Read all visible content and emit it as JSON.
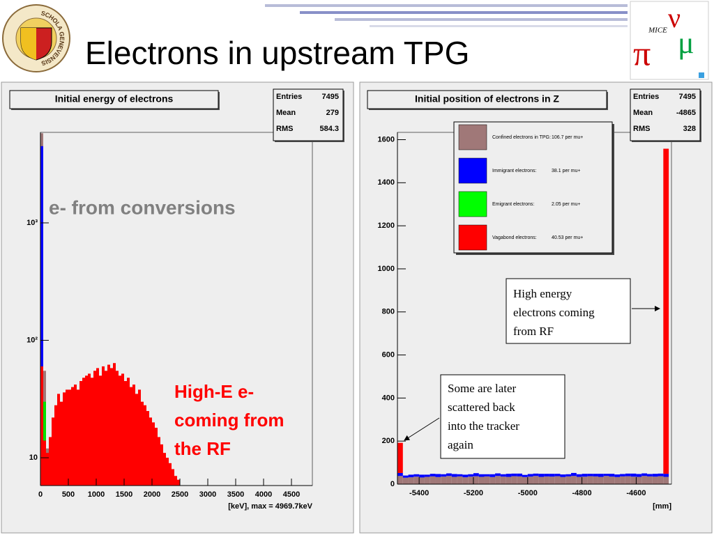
{
  "title": "Electrons in upstream TPG",
  "logo": {
    "seal_text": "SCHOLA GENEVENSIS",
    "mice": "MICE",
    "symbols": [
      "π",
      "ν",
      "μ"
    ]
  },
  "chart_data": [
    {
      "type": "histogram",
      "title": "Initial energy of  electrons",
      "x_label": "[keV], max =    4969.7keV",
      "stats": [
        {
          "label": "Entries",
          "value": 7495
        },
        {
          "label": "Mean",
          "value": 279
        },
        {
          "label": "RMS",
          "value": 584.3
        }
      ],
      "log_y": true,
      "stacked": false,
      "xlim": [
        0,
        4875
      ],
      "ylim": [
        5.8,
        5900
      ],
      "xticks": [
        0,
        500,
        1000,
        1500,
        2000,
        2500,
        3000,
        3500,
        4000,
        4500
      ],
      "yticks": [
        10,
        {
          "value": 100,
          "label": "10²"
        },
        {
          "value": 1000,
          "label": "10³"
        }
      ],
      "bins": [
        0,
        50,
        100,
        150,
        200,
        250,
        300,
        350,
        400,
        450,
        500,
        550,
        600,
        650,
        700,
        750,
        800,
        850,
        900,
        950,
        1000,
        1050,
        1100,
        1150,
        1200,
        1250,
        1300,
        1350,
        1400,
        1450,
        1500,
        1550,
        1600,
        1650,
        1700,
        1750,
        1800,
        1850,
        1900,
        1950,
        2000,
        2050,
        2100,
        2150,
        2200,
        2250,
        2300,
        2350,
        2400,
        2450,
        2500
      ],
      "series": [
        {
          "color": "#a07878",
          "values": [
            5800,
            55,
            12,
            null,
            null,
            null,
            null,
            null,
            null,
            null,
            null,
            null,
            null,
            null,
            null,
            null,
            null,
            null,
            null,
            null,
            null,
            null,
            null,
            null,
            null,
            null,
            null,
            null,
            null,
            null,
            null,
            null,
            null,
            null,
            null,
            null,
            null,
            null,
            null,
            null,
            null,
            null,
            null,
            null,
            null,
            null,
            null,
            null,
            null,
            null
          ]
        },
        {
          "color": "#0000ff",
          "values": [
            4500,
            12,
            null,
            null,
            null,
            null,
            null,
            null,
            null,
            null,
            null,
            null,
            null,
            null,
            null,
            null,
            null,
            null,
            null,
            null,
            null,
            null,
            null,
            null,
            null,
            null,
            null,
            null,
            null,
            null,
            null,
            null,
            null,
            null,
            null,
            null,
            null,
            null,
            null,
            null,
            null,
            null,
            null,
            null,
            null,
            null,
            null,
            null,
            null,
            null
          ]
        },
        {
          "color": "#00e000",
          "values": [
            50,
            30,
            8,
            null,
            null,
            null,
            null,
            null,
            null,
            null,
            null,
            null,
            null,
            null,
            null,
            null,
            null,
            null,
            null,
            null,
            null,
            null,
            null,
            null,
            null,
            null,
            null,
            null,
            null,
            null,
            null,
            null,
            null,
            null,
            null,
            null,
            null,
            null,
            null,
            null,
            null,
            null,
            null,
            null,
            null,
            null,
            null,
            null,
            null,
            null
          ]
        },
        {
          "color": "#ff0000",
          "values": [
            60,
            14,
            11,
            15,
            22,
            28,
            35,
            30,
            36,
            38,
            38,
            40,
            42,
            38,
            45,
            48,
            50,
            52,
            48,
            55,
            58,
            50,
            60,
            55,
            62,
            58,
            64,
            55,
            50,
            52,
            45,
            48,
            40,
            42,
            35,
            38,
            30,
            28,
            25,
            22,
            20,
            18,
            15,
            13,
            11,
            10,
            9,
            8,
            7,
            6.5
          ]
        }
      ],
      "annotations": [
        {
          "lines": [
            "e- from conversions"
          ],
          "color": "#808080"
        },
        {
          "lines": [
            "High-E e-",
            "coming from",
            "the RF"
          ],
          "color": "#ff0000"
        }
      ]
    },
    {
      "type": "histogram",
      "title": "Initial position of electrons in Z",
      "x_label": "[mm]",
      "stats": [
        {
          "label": "Entries",
          "value": 7495
        },
        {
          "label": "Mean",
          "value": -4865
        },
        {
          "label": "RMS",
          "value": 328
        }
      ],
      "log_y": false,
      "stacked": true,
      "xlim": [
        -5480,
        -4470
      ],
      "ylim": [
        0,
        1634
      ],
      "xticks": [
        -5400,
        -5200,
        -5000,
        -4800,
        -4600
      ],
      "yticks": [
        0,
        200,
        400,
        600,
        800,
        1000,
        1200,
        1400,
        1600
      ],
      "bins": [
        -5480,
        -5460,
        -5440,
        -5420,
        -5400,
        -5380,
        -5360,
        -5340,
        -5320,
        -5300,
        -5280,
        -5260,
        -5240,
        -5220,
        -5200,
        -5180,
        -5160,
        -5140,
        -5120,
        -5100,
        -5080,
        -5060,
        -5040,
        -5020,
        -5000,
        -4980,
        -4960,
        -4940,
        -4920,
        -4900,
        -4880,
        -4860,
        -4840,
        -4820,
        -4800,
        -4780,
        -4760,
        -4740,
        -4720,
        -4700,
        -4680,
        -4660,
        -4640,
        -4620,
        -4600,
        -4580,
        -4560,
        -4540,
        -4520,
        -4500,
        -4480
      ],
      "series": [
        {
          "name": "Confined electrons in TPG:",
          "note": "106.7 per mu+",
          "color": "#a07878",
          "values": [
            38,
            30,
            32,
            35,
            31,
            34,
            36,
            33,
            35,
            38,
            34,
            36,
            32,
            35,
            37,
            34,
            36,
            33,
            38,
            35,
            34,
            37,
            36,
            33,
            35,
            38,
            34,
            36,
            35,
            37,
            33,
            36,
            38,
            34,
            35,
            37,
            36,
            34,
            38,
            35,
            33,
            36,
            37,
            35,
            34,
            38,
            36,
            35,
            37,
            34
          ]
        },
        {
          "name": "Immigrant electrons:",
          "note": "38.1 per mu+",
          "color": "#0000ff",
          "values": [
            14,
            10,
            12,
            11,
            13,
            10,
            12,
            14,
            11,
            12,
            13,
            10,
            12,
            11,
            14,
            12,
            10,
            13,
            12,
            11,
            14,
            12,
            13,
            10,
            12,
            11,
            14,
            12,
            13,
            11,
            12,
            10,
            14,
            12,
            13,
            11,
            12,
            14,
            10,
            13,
            12,
            11,
            12,
            14,
            13,
            12,
            11,
            13,
            12,
            14
          ]
        },
        {
          "name": "Emigrant electrons:",
          "note": "2.05 per mu+",
          "color": "#00ff00",
          "values": [
            0,
            0,
            0,
            0,
            0,
            0,
            0,
            0,
            0,
            0,
            0,
            0,
            0,
            0,
            0,
            0,
            0,
            0,
            0,
            0,
            0,
            0,
            0,
            0,
            0,
            0,
            0,
            0,
            0,
            0,
            0,
            0,
            0,
            0,
            0,
            0,
            0,
            0,
            0,
            0,
            0,
            0,
            0,
            0,
            0,
            0,
            0,
            0,
            0,
            0
          ]
        },
        {
          "name": "Vagabond electrons:",
          "note": "40.53 per mu+",
          "color": "#ff0000",
          "values": [
            140,
            0,
            0,
            0,
            0,
            0,
            0,
            0,
            0,
            0,
            0,
            0,
            0,
            0,
            0,
            0,
            0,
            0,
            0,
            0,
            0,
            0,
            0,
            0,
            0,
            0,
            0,
            0,
            0,
            0,
            0,
            0,
            0,
            0,
            0,
            0,
            0,
            0,
            0,
            0,
            0,
            0,
            0,
            0,
            0,
            0,
            0,
            0,
            0,
            1510
          ]
        }
      ],
      "annotations": [
        {
          "lines": [
            "High energy",
            "electrons coming",
            "from RF"
          ],
          "color": "#000000"
        },
        {
          "lines": [
            "Some are later",
            "scattered back",
            "into the tracker",
            "again"
          ],
          "color": "#000000"
        }
      ]
    }
  ]
}
